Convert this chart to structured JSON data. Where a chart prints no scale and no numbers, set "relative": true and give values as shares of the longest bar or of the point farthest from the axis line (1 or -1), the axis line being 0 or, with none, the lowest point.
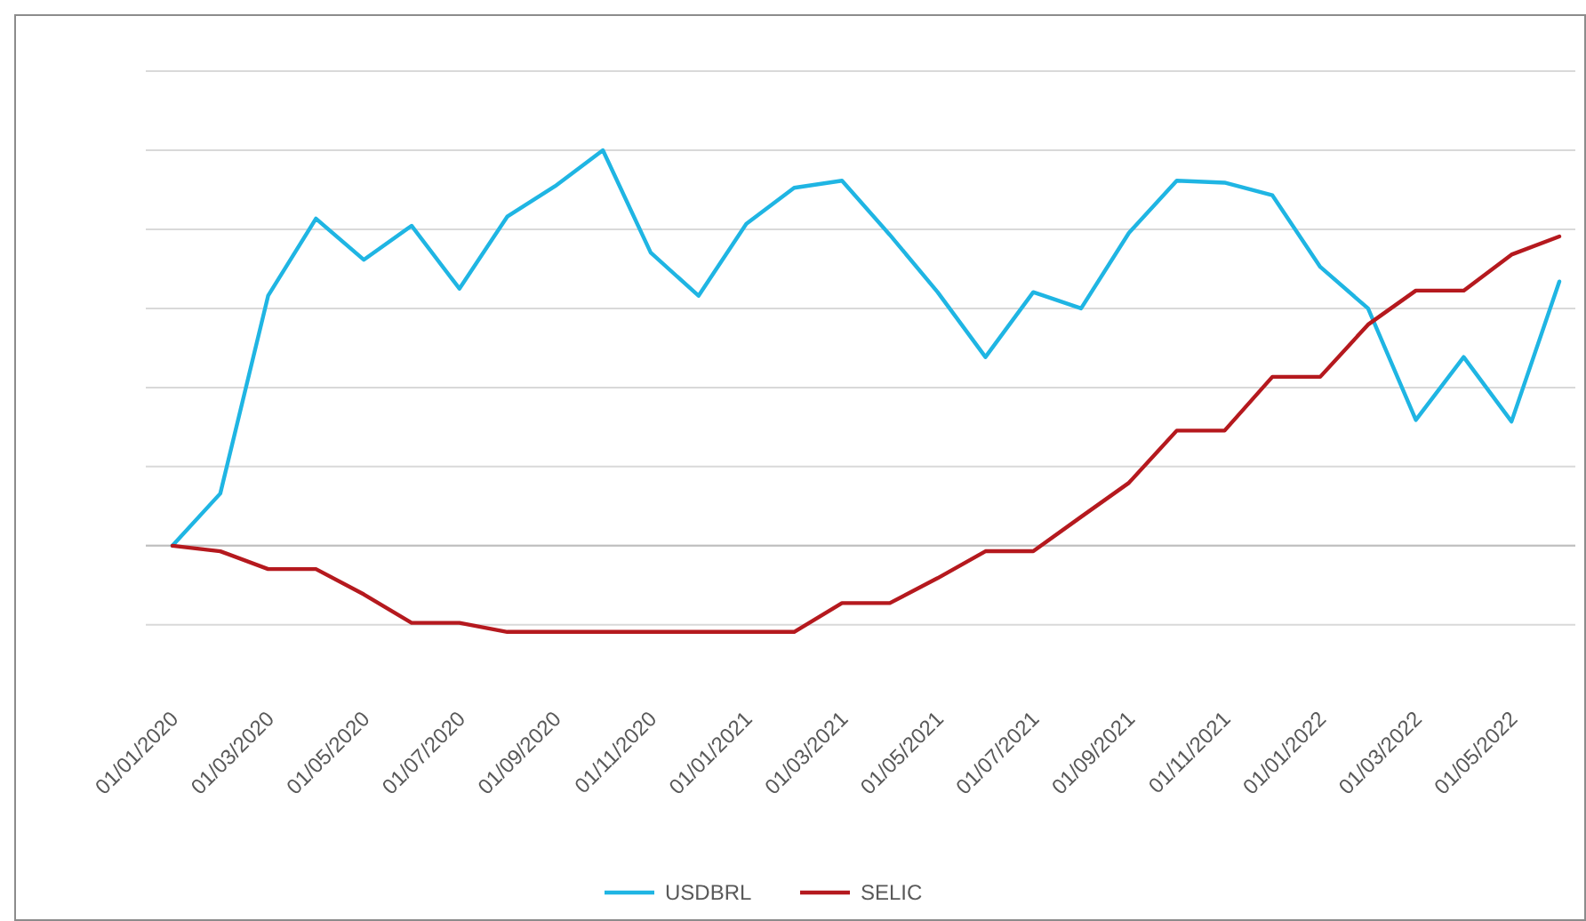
{
  "chart_data": {
    "type": "line",
    "relative": true,
    "grid": "y",
    "legend": "bottom",
    "marker": "none",
    "line_style": "solid",
    "categories": [
      "01/01/2020",
      null,
      "01/03/2020",
      null,
      "01/05/2020",
      null,
      "01/07/2020",
      null,
      "01/09/2020",
      null,
      "01/11/2020",
      null,
      "01/01/2021",
      null,
      "01/03/2021",
      null,
      "01/05/2021",
      null,
      "01/07/2021",
      null,
      "01/09/2021",
      null,
      "01/11/2021",
      null,
      "01/01/2022",
      null,
      "01/03/2022",
      null,
      "01/05/2022",
      null
    ],
    "series": [
      {
        "name": "USDBRL",
        "color": "#1fb5e3",
        "values": [
          0,
          0.132,
          0.632,
          0.827,
          0.723,
          0.809,
          0.65,
          0.832,
          0.909,
          1,
          0.741,
          0.632,
          0.814,
          0.905,
          0.923,
          0.786,
          0.641,
          0.477,
          0.641,
          0.6,
          0.791,
          0.923,
          0.918,
          0.886,
          0.705,
          0.6,
          0.318,
          0.477,
          0.314,
          0.668
        ]
      },
      {
        "name": "SELIC",
        "color": "#b5191e",
        "values": [
          0,
          -0.014,
          -0.059,
          -0.059,
          -0.123,
          -0.195,
          -0.195,
          -0.218,
          -0.218,
          -0.218,
          -0.218,
          -0.218,
          -0.218,
          -0.218,
          -0.145,
          -0.145,
          -0.082,
          -0.014,
          -0.014,
          0.073,
          0.159,
          0.291,
          0.291,
          0.427,
          0.427,
          0.559,
          0.645,
          0.645,
          0.736,
          0.782
        ]
      }
    ]
  }
}
